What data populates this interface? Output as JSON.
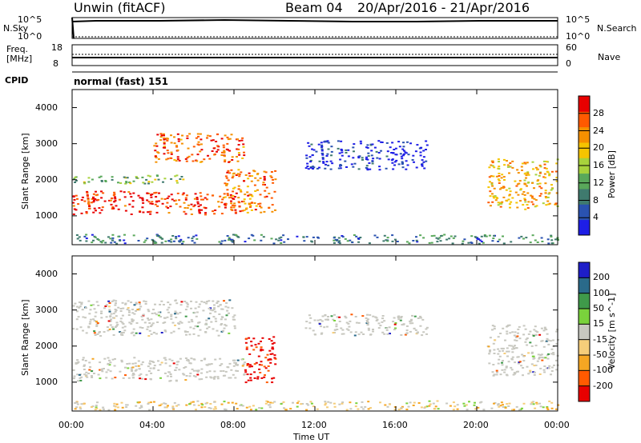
{
  "header": {
    "station": "Unwin (fitACF)",
    "beam": "Beam 04",
    "date_range": "20/Apr/2016 - 21/Apr/2016"
  },
  "strip_labels": {
    "nsky": "N.Sky",
    "nsearch": "N.Search",
    "freq_line1": "Freq.",
    "freq_line2": "[MHz]",
    "nave": "Nave",
    "cpid": "CPID",
    "cpid_value": "normal (fast) 151"
  },
  "strip_ticks": {
    "noise_left": [
      "10^5",
      "10^0"
    ],
    "noise_right": [
      "10^5",
      "10^0"
    ],
    "freq_left": [
      "18",
      "8"
    ],
    "nave_right": [
      "60",
      "0"
    ]
  },
  "colors": {
    "power_scale": [
      "#1e1ee6",
      "#2a52b0",
      "#3f7a6e",
      "#59a85a",
      "#a8d23c",
      "#f5c400",
      "#f59000",
      "#ff5a00",
      "#e80000"
    ],
    "velocity_scale": [
      "#e80000",
      "#ff5a00",
      "#f5a623",
      "#f5cd7a",
      "#c8c8c0",
      "#7ad23c",
      "#3f9a4a",
      "#2a6a8a",
      "#1e1ec8"
    ],
    "ground_scatter": "#c8c8c0"
  },
  "chart_data": [
    {
      "type": "heatmap",
      "title": "",
      "xlabel": "",
      "ylabel": "Slant Range [km]",
      "xlim": [
        "00:00",
        "00:00"
      ],
      "ylim": [
        200,
        4500
      ],
      "x_ticks": [
        "00:00",
        "04:00",
        "08:00",
        "12:00",
        "16:00",
        "20:00",
        "00:00"
      ],
      "y_ticks": [
        1000,
        2000,
        3000,
        4000
      ],
      "colorbar": {
        "label": "Power [dB]",
        "ticks": [
          4,
          8,
          12,
          16,
          20,
          24,
          28
        ]
      },
      "regions": [
        {
          "t_start": 0.0,
          "t_end": 8.3,
          "range_low": 1050,
          "range_high": 1700,
          "value": 26
        },
        {
          "t_start": 0.0,
          "t_end": 5.5,
          "range_low": 1900,
          "range_high": 2150,
          "value": 14
        },
        {
          "t_start": 4.0,
          "t_end": 8.5,
          "range_low": 2500,
          "range_high": 3300,
          "value": 24
        },
        {
          "t_start": 7.5,
          "t_end": 10.0,
          "range_low": 1100,
          "range_high": 2300,
          "value": 22
        },
        {
          "t_start": 11.5,
          "t_end": 17.5,
          "range_low": 2300,
          "range_high": 3100,
          "value": 6
        },
        {
          "t_start": 20.5,
          "t_end": 24.0,
          "range_low": 1200,
          "range_high": 2600,
          "value": 20
        },
        {
          "t_start": 0.0,
          "t_end": 24.0,
          "range_low": 250,
          "range_high": 500,
          "value": 10
        }
      ]
    },
    {
      "type": "heatmap",
      "title": "",
      "xlabel": "Time UT",
      "ylabel": "Slant Range [km]",
      "xlim": [
        "00:00",
        "00:00"
      ],
      "ylim": [
        200,
        4500
      ],
      "x_ticks": [
        "00:00",
        "04:00",
        "08:00",
        "12:00",
        "16:00",
        "20:00",
        "00:00"
      ],
      "y_ticks": [
        1000,
        2000,
        3000,
        4000
      ],
      "colorbar": {
        "label": "Velocity [m s^-1]",
        "ticks": [
          -200,
          -100,
          -50,
          -15,
          15,
          50,
          100,
          200
        ]
      },
      "regions": [
        {
          "t_start": 0.0,
          "t_end": 8.5,
          "range_low": 1050,
          "range_high": 1700,
          "value": 0,
          "ground_scatter": true
        },
        {
          "t_start": 0.0,
          "t_end": 8.0,
          "range_low": 2300,
          "range_high": 3300,
          "value": 0,
          "ground_scatter": true
        },
        {
          "t_start": 8.5,
          "t_end": 10.0,
          "range_low": 1000,
          "range_high": 2300,
          "value": -200
        },
        {
          "t_start": 11.5,
          "t_end": 17.5,
          "range_low": 2300,
          "range_high": 2900,
          "value": 0,
          "ground_scatter": true
        },
        {
          "t_start": 20.5,
          "t_end": 24.0,
          "range_low": 1200,
          "range_high": 2600,
          "value": 0,
          "ground_scatter": true
        },
        {
          "t_start": 0.0,
          "t_end": 24.0,
          "range_low": 250,
          "range_high": 500,
          "value": -30
        }
      ]
    }
  ]
}
